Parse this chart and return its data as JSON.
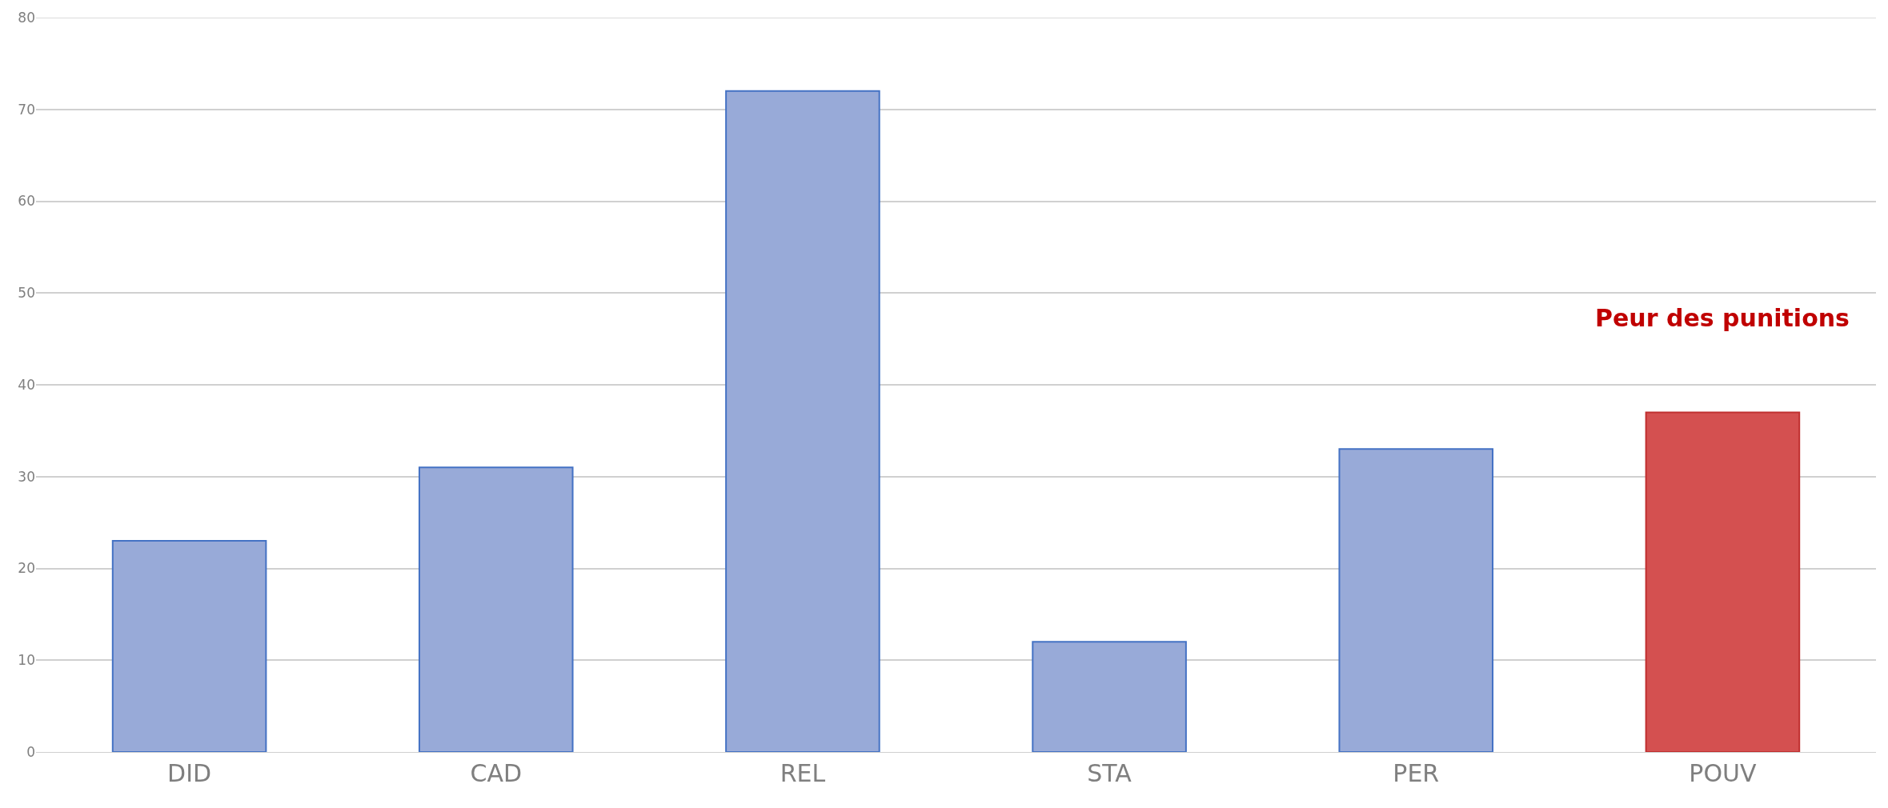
{
  "chart_data": {
    "type": "bar",
    "categories": [
      "DID",
      "CAD",
      "REL",
      "STA",
      "PER",
      "POUV"
    ],
    "values": [
      23,
      31,
      72,
      12,
      33,
      37
    ],
    "colors": [
      "#98aad8",
      "#98aad8",
      "#98aad8",
      "#98aad8",
      "#98aad8",
      "#d45050"
    ],
    "ylim": [
      0,
      80
    ],
    "yticks": [
      0,
      10,
      20,
      30,
      40,
      50,
      60,
      70,
      80
    ],
    "grid": "y",
    "annotations": [
      "Peur des punitions"
    ]
  }
}
